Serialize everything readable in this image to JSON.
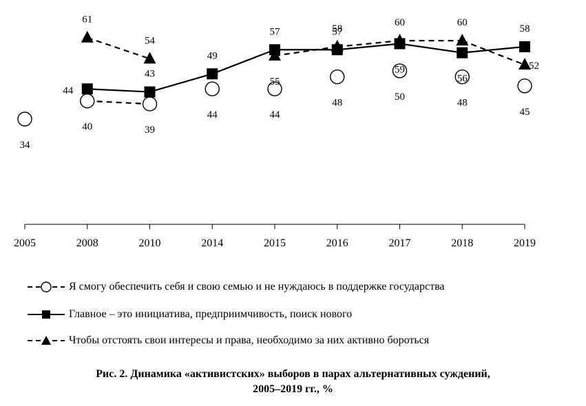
{
  "chart_data": {
    "type": "line",
    "categories": [
      "2005",
      "2008",
      "2010",
      "2014",
      "2015",
      "2016",
      "2017",
      "2018",
      "2019"
    ],
    "series": [
      {
        "name": "Я смогу обеспечить себя и свою семью и не нуждаюсь в поддержке государства",
        "marker": "circle-open",
        "line": "dashed",
        "values": [
          34,
          40,
          39,
          44,
          44,
          48,
          50,
          48,
          45
        ]
      },
      {
        "name": "Главное – это инициатива, предприимчивость, поиск нового",
        "marker": "square-filled",
        "line": "solid",
        "values": [
          null,
          44,
          43,
          49,
          57,
          57,
          59,
          56,
          58
        ]
      },
      {
        "name": "Чтобы отстоять свои интересы и права, необходимо за них активно бороться",
        "marker": "triangle-filled",
        "line": "dashed",
        "values": [
          null,
          61,
          54,
          null,
          55,
          58,
          60,
          60,
          52
        ]
      }
    ],
    "segments": [
      [
        [
          1,
          2
        ]
      ],
      [
        [
          1,
          2
        ],
        [
          2,
          3
        ],
        [
          3,
          4
        ],
        [
          4,
          5
        ],
        [
          5,
          6
        ],
        [
          6,
          7
        ],
        [
          7,
          8
        ]
      ],
      [
        [
          1,
          2
        ],
        [
          4,
          5
        ],
        [
          5,
          6
        ],
        [
          6,
          7
        ],
        [
          7,
          8
        ]
      ]
    ],
    "colors": {
      "line": "#000000",
      "background": "#ffffff"
    }
  },
  "legend": {
    "items": [
      "Я смогу обеспечить себя и свою семью и не нуждаюсь в поддержке государства",
      "Главное – это инициатива, предприимчивость, поиск нового",
      "Чтобы отстоять свои интересы и права, необходимо за них активно бороться"
    ]
  },
  "caption": {
    "line1": "Рис. 2. Динамика «активистских» выборов в парах альтернативных суждений,",
    "line2": "2005–2019 гг., %"
  }
}
